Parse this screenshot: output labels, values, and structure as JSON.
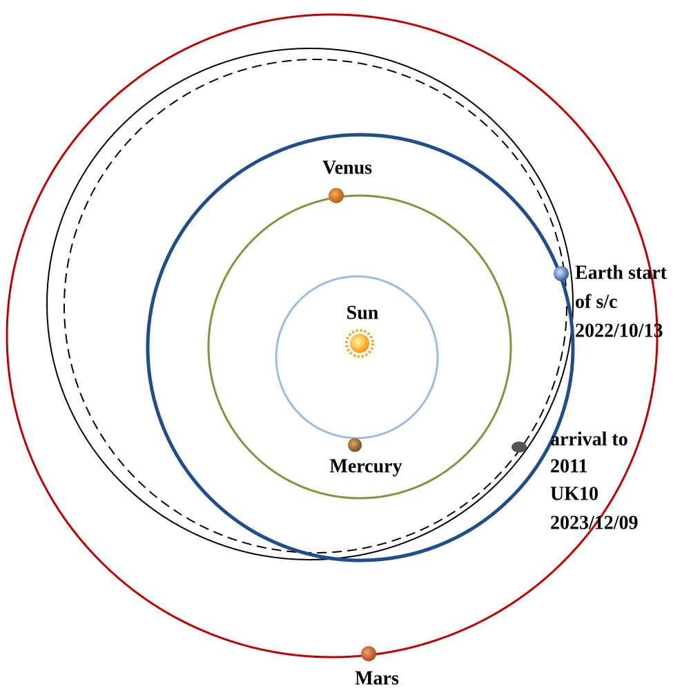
{
  "labels": {
    "sun": "Sun",
    "mercury": "Mercury",
    "venus": "Venus",
    "mars": "Mars",
    "earth": [
      "Earth start",
      "of s/c",
      "2022/10/13"
    ],
    "arrival": [
      "arrival to",
      "2011",
      "UK10",
      "2023/12/09"
    ]
  }
}
